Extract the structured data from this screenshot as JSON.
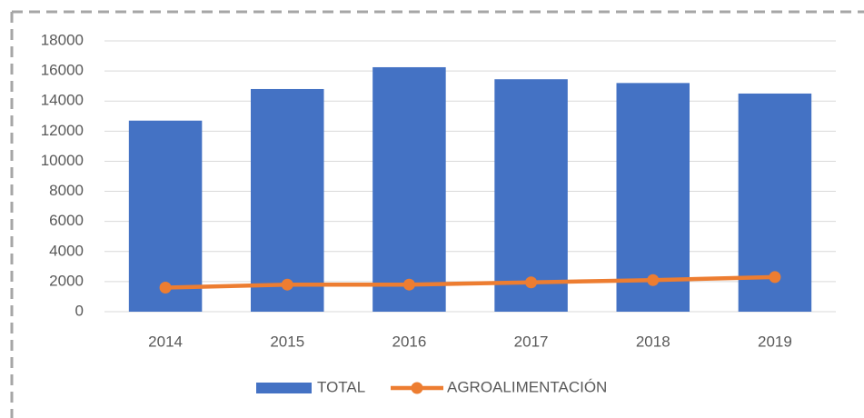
{
  "chart_data": {
    "type": "bar",
    "categories": [
      "2014",
      "2015",
      "2016",
      "2017",
      "2018",
      "2019"
    ],
    "series": [
      {
        "name": "TOTAL",
        "type": "bar",
        "color": "#4472c4",
        "values": [
          12700,
          14800,
          16250,
          15450,
          15200,
          14500
        ]
      },
      {
        "name": "AGROALIMENTACIÓN",
        "type": "line",
        "color": "#ed7d31",
        "values": [
          1600,
          1800,
          1800,
          1950,
          2100,
          2300
        ]
      }
    ],
    "ylim": [
      0,
      18000
    ],
    "yticks": [
      0,
      2000,
      4000,
      6000,
      8000,
      10000,
      12000,
      14000,
      16000,
      18000
    ],
    "grid": true,
    "legend": "bottom"
  }
}
